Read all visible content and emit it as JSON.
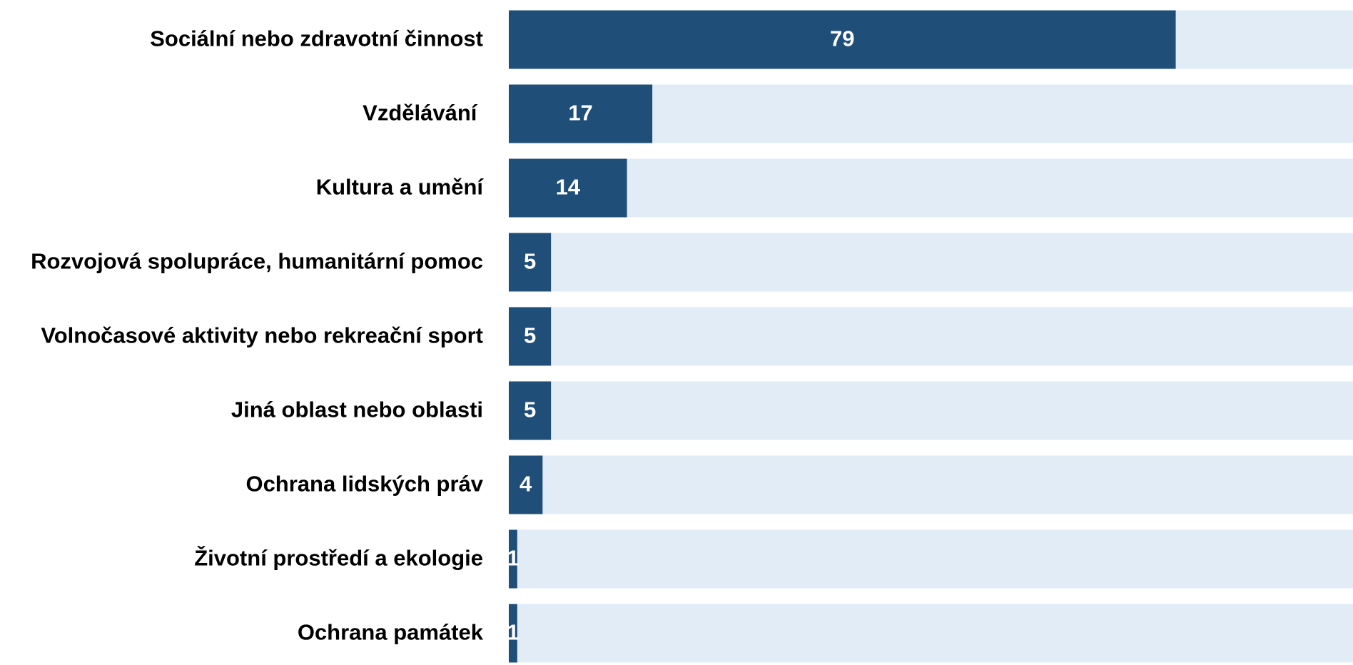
{
  "chart_data": {
    "type": "bar",
    "orientation": "horizontal",
    "categories": [
      "Sociální nebo zdravotní činnost",
      "Vzdělávání ",
      "Kultura a umění",
      "Rozvojová spolupráce, humanitární pomoc",
      "Volnočasové aktivity nebo rekreační sport",
      "Jiná oblast nebo oblasti",
      "Ochrana lidských práv",
      "Životní prostředí a ekologie",
      "Ochrana památek"
    ],
    "values": [
      79,
      17,
      14,
      5,
      5,
      5,
      4,
      1,
      1
    ],
    "color": "#1f4e79",
    "track_color": "#e1ecf7",
    "xlim": [
      0,
      100
    ]
  }
}
